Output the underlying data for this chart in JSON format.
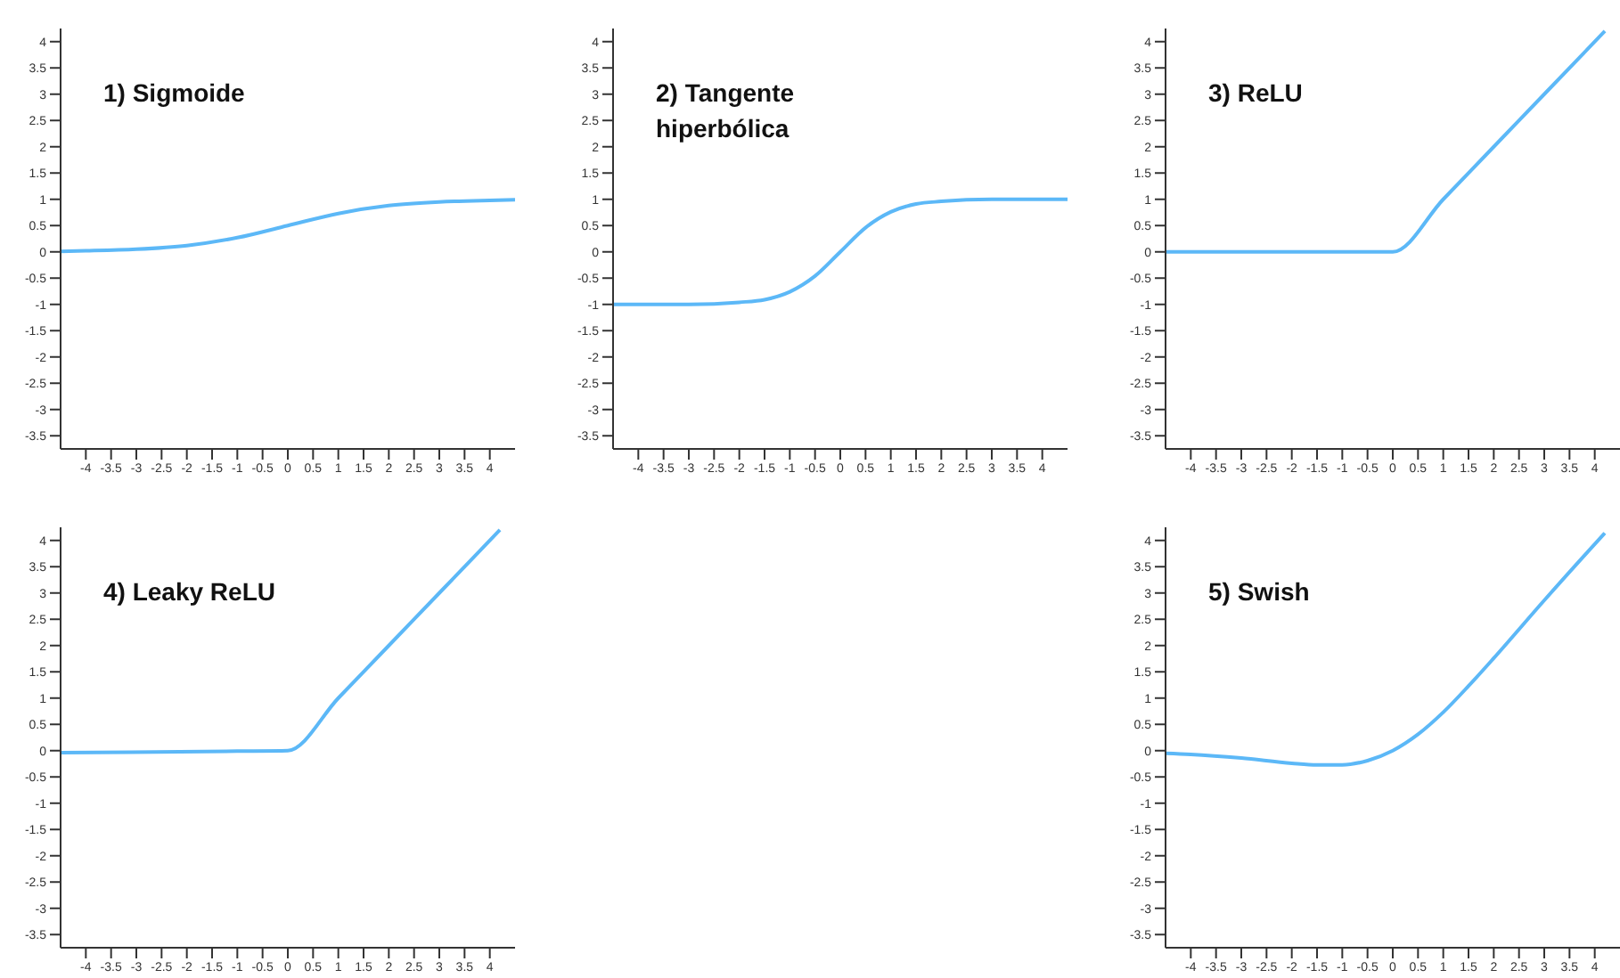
{
  "chart_data": [
    {
      "type": "line",
      "title": "1) Sigmoide",
      "x": [
        -4.5,
        -4,
        -3,
        -2,
        -1,
        0,
        1,
        2,
        3,
        4,
        4.5
      ],
      "series": [
        {
          "color": "#5cb8f7",
          "values": [
            0.01,
            0.02,
            0.05,
            0.12,
            0.27,
            0.5,
            0.73,
            0.88,
            0.95,
            0.98,
            0.99
          ]
        }
      ],
      "xlim": [
        -4.5,
        4.5
      ],
      "ylim": [
        -3.75,
        4.25
      ],
      "xticks": [
        -4,
        -3.5,
        -3,
        -2.5,
        -2,
        -1.5,
        -1,
        -0.5,
        0,
        0.5,
        1,
        1.5,
        2,
        2.5,
        3,
        3.5,
        4
      ],
      "yticks": [
        -3.5,
        -3,
        -2.5,
        -2,
        -1.5,
        -1,
        -0.5,
        0,
        0.5,
        1,
        1.5,
        2,
        2.5,
        3,
        3.5,
        4
      ]
    },
    {
      "type": "line",
      "title": "2) Tangente hiperbólica",
      "x": [
        -4.5,
        -3,
        -2,
        -1.5,
        -1,
        -0.5,
        0,
        0.5,
        1,
        1.5,
        2,
        3,
        4.5
      ],
      "series": [
        {
          "color": "#5cb8f7",
          "values": [
            -1,
            -1,
            -0.96,
            -0.91,
            -0.76,
            -0.46,
            0,
            0.46,
            0.76,
            0.91,
            0.96,
            1,
            1
          ]
        }
      ],
      "xlim": [
        -4.5,
        4.5
      ],
      "ylim": [
        -3.75,
        4.25
      ],
      "xticks": [
        -4,
        -3.5,
        -3,
        -2.5,
        -2,
        -1.5,
        -1,
        -0.5,
        0,
        0.5,
        1,
        1.5,
        2,
        2.5,
        3,
        3.5,
        4
      ],
      "yticks": [
        -3.5,
        -3,
        -2.5,
        -2,
        -1.5,
        -1,
        -0.5,
        0,
        0.5,
        1,
        1.5,
        2,
        2.5,
        3,
        3.5,
        4
      ]
    },
    {
      "type": "line",
      "title": "3) ReLU",
      "x": [
        -4.5,
        -1,
        0,
        1,
        2,
        3,
        4.2
      ],
      "series": [
        {
          "color": "#5cb8f7",
          "values": [
            0,
            0,
            0,
            1,
            2,
            3,
            4.2
          ]
        }
      ],
      "xlim": [
        -4.5,
        4.5
      ],
      "ylim": [
        -3.75,
        4.25
      ],
      "xticks": [
        -4,
        -3.5,
        -3,
        -2.5,
        -2,
        -1.5,
        -1,
        -0.5,
        0,
        0.5,
        1,
        1.5,
        2,
        2.5,
        3,
        3.5,
        4
      ],
      "yticks": [
        -3.5,
        -3,
        -2.5,
        -2,
        -1.5,
        -1,
        -0.5,
        0,
        0.5,
        1,
        1.5,
        2,
        2.5,
        3,
        3.5,
        4
      ]
    },
    {
      "type": "line",
      "title": "4) Leaky ReLU",
      "x": [
        -4.5,
        -1,
        0,
        1,
        2,
        3,
        4.2
      ],
      "series": [
        {
          "color": "#5cb8f7",
          "values": [
            -0.04,
            -0.01,
            0,
            1,
            2,
            3,
            4.2
          ]
        }
      ],
      "xlim": [
        -4.5,
        4.5
      ],
      "ylim": [
        -3.75,
        4.25
      ],
      "xticks": [
        -4,
        -3.5,
        -3,
        -2.5,
        -2,
        -1.5,
        -1,
        -0.5,
        0,
        0.5,
        1,
        1.5,
        2,
        2.5,
        3,
        3.5,
        4
      ],
      "yticks": [
        -3.5,
        -3,
        -2.5,
        -2,
        -1.5,
        -1,
        -0.5,
        0,
        0.5,
        1,
        1.5,
        2,
        2.5,
        3,
        3.5,
        4
      ]
    },
    {
      "type": "line",
      "title": "5) Swish",
      "x": [
        -4.5,
        -4,
        -3,
        -2,
        -1.5,
        -1,
        -0.5,
        0,
        0.5,
        1,
        1.5,
        2,
        3,
        4,
        4.2
      ],
      "series": [
        {
          "color": "#5cb8f7",
          "values": [
            -0.05,
            -0.07,
            -0.14,
            -0.24,
            -0.27,
            -0.27,
            -0.19,
            0,
            0.31,
            0.73,
            1.23,
            1.76,
            2.86,
            3.93,
            4.14
          ]
        }
      ],
      "xlim": [
        -4.5,
        4.5
      ],
      "ylim": [
        -3.75,
        4.25
      ],
      "xticks": [
        -4,
        -3.5,
        -3,
        -2.5,
        -2,
        -1.5,
        -1,
        -0.5,
        0,
        0.5,
        1,
        1.5,
        2,
        2.5,
        3,
        3.5,
        4
      ],
      "yticks": [
        -3.5,
        -3,
        -2.5,
        -2,
        -1.5,
        -1,
        -0.5,
        0,
        0.5,
        1,
        1.5,
        2,
        2.5,
        3,
        3.5,
        4
      ]
    }
  ]
}
